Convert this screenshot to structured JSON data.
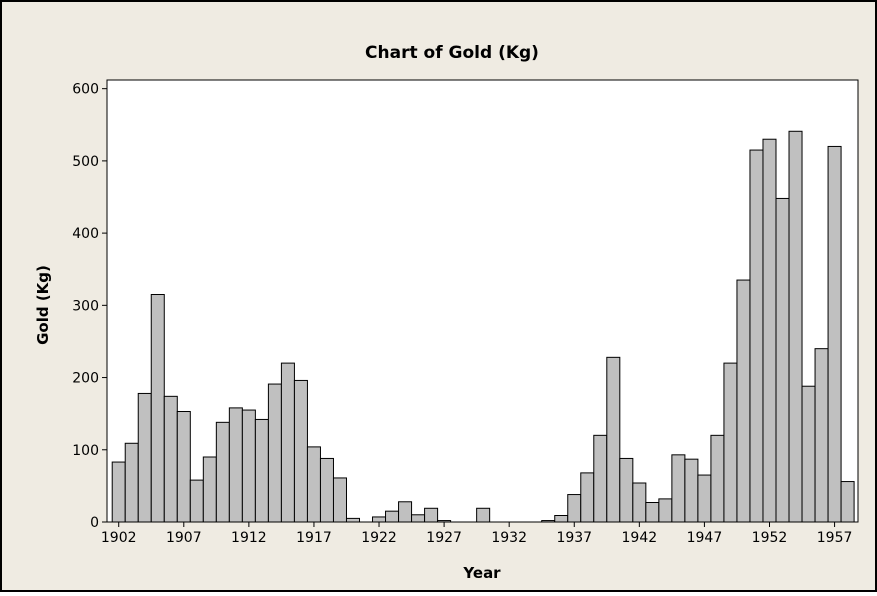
{
  "chart_data": {
    "type": "bar",
    "title": "Chart of Gold (Kg)",
    "x_label": "Year",
    "y_label": "Gold (Kg)",
    "x": [
      1902,
      1903,
      1904,
      1905,
      1906,
      1907,
      1908,
      1909,
      1910,
      1911,
      1912,
      1913,
      1914,
      1915,
      1916,
      1917,
      1918,
      1919,
      1920,
      1921,
      1922,
      1923,
      1924,
      1925,
      1926,
      1927,
      1928,
      1929,
      1930,
      1931,
      1932,
      1933,
      1934,
      1935,
      1936,
      1937,
      1938,
      1939,
      1940,
      1941,
      1942,
      1943,
      1944,
      1945,
      1946,
      1947,
      1948,
      1949,
      1950,
      1951,
      1952,
      1953,
      1954,
      1955,
      1956,
      1957,
      1958
    ],
    "values": [
      83,
      109,
      178,
      315,
      174,
      153,
      58,
      90,
      138,
      158,
      155,
      142,
      191,
      220,
      196,
      104,
      88,
      61,
      5,
      0,
      7,
      15,
      28,
      10,
      19,
      2,
      0,
      0,
      19,
      0,
      0,
      0,
      0,
      2,
      9,
      38,
      68,
      120,
      228,
      88,
      54,
      27,
      32,
      93,
      87,
      65,
      120,
      220,
      335,
      515,
      530,
      448,
      541,
      188,
      240,
      520,
      56
    ],
    "color": "#c0c0c0",
    "xlim": [
      1901.1,
      1958.8
    ],
    "xticks": [
      1902,
      1907,
      1912,
      1917,
      1922,
      1927,
      1932,
      1937,
      1942,
      1947,
      1952,
      1957
    ],
    "ylim": [
      0,
      612
    ],
    "yticks": [
      0,
      100,
      200,
      300,
      400,
      500,
      600
    ]
  }
}
